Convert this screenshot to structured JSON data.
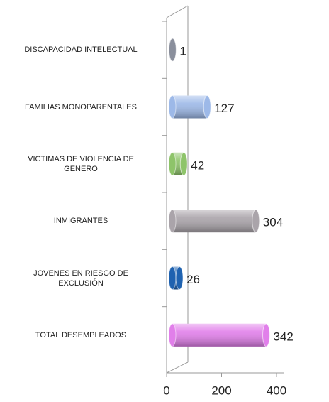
{
  "chart_data": {
    "type": "bar",
    "orientation": "horizontal",
    "categories": [
      "DISCAPACIDAD INTELECTUAL",
      "FAMILIAS MONOPARENTALES",
      "VICTIMAS DE VIOLENCIA DE GENERO",
      "INMIGRANTES",
      "JOVENES EN RIESGO DE EXCLUSIÓN",
      "TOTAL DESEMPLEADOS"
    ],
    "values": [
      1,
      127,
      42,
      304,
      26,
      342
    ],
    "colors": [
      "#8a8f9c",
      "#9db9e8",
      "#8ec46a",
      "#aaa4aa",
      "#1f62b0",
      "#e17fea"
    ],
    "xlim": [
      0,
      400
    ],
    "xticks": [
      0,
      200,
      400
    ]
  }
}
